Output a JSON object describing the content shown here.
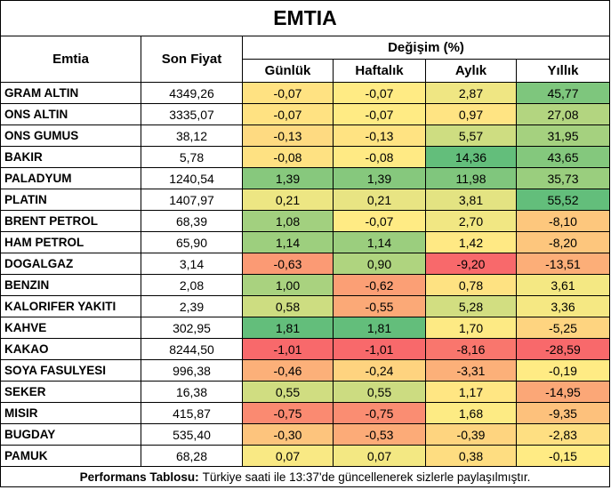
{
  "title": "EMTIA",
  "headers": {
    "commodity": "Emtia",
    "last_price": "Son Fiyat",
    "change_group": "Değişim (%)",
    "daily": "Günlük",
    "weekly": "Haftalık",
    "monthly": "Aylık",
    "yearly": "Yıllık"
  },
  "rows": [
    {
      "name": "GRAM ALTIN",
      "price": "4349,26",
      "daily": "-0,07",
      "weekly": "-0,07",
      "monthly": "2,87",
      "yearly": "45,77"
    },
    {
      "name": "ONS ALTIN",
      "price": "3335,07",
      "daily": "-0,07",
      "weekly": "-0,07",
      "monthly": "0,97",
      "yearly": "27,08"
    },
    {
      "name": "ONS GUMUS",
      "price": "38,12",
      "daily": "-0,13",
      "weekly": "-0,13",
      "monthly": "5,57",
      "yearly": "31,95"
    },
    {
      "name": "BAKIR",
      "price": "5,78",
      "daily": "-0,08",
      "weekly": "-0,08",
      "monthly": "14,36",
      "yearly": "43,65"
    },
    {
      "name": "PALADYUM",
      "price": "1240,54",
      "daily": "1,39",
      "weekly": "1,39",
      "monthly": "11,98",
      "yearly": "35,73"
    },
    {
      "name": "PLATIN",
      "price": "1407,97",
      "daily": "0,21",
      "weekly": "0,21",
      "monthly": "3,81",
      "yearly": "55,52"
    },
    {
      "name": "BRENT PETROL",
      "price": "68,39",
      "daily": "1,08",
      "weekly": "-0,07",
      "monthly": "2,70",
      "yearly": "-8,10"
    },
    {
      "name": "HAM PETROL",
      "price": "65,90",
      "daily": "1,14",
      "weekly": "1,14",
      "monthly": "1,42",
      "yearly": "-8,20"
    },
    {
      "name": "DOGALGAZ",
      "price": "3,14",
      "daily": "-0,63",
      "weekly": "0,90",
      "monthly": "-9,20",
      "yearly": "-13,51"
    },
    {
      "name": "BENZIN",
      "price": "2,08",
      "daily": "1,00",
      "weekly": "-0,62",
      "monthly": "0,78",
      "yearly": "3,61"
    },
    {
      "name": "KALORIFER YAKITI",
      "price": "2,39",
      "daily": "0,58",
      "weekly": "-0,55",
      "monthly": "5,28",
      "yearly": "3,36"
    },
    {
      "name": "KAHVE",
      "price": "302,95",
      "daily": "1,81",
      "weekly": "1,81",
      "monthly": "1,70",
      "yearly": "-5,25"
    },
    {
      "name": "KAKAO",
      "price": "8244,50",
      "daily": "-1,01",
      "weekly": "-1,01",
      "monthly": "-8,16",
      "yearly": "-28,59"
    },
    {
      "name": "SOYA FASULYESI",
      "price": "996,38",
      "daily": "-0,46",
      "weekly": "-0,24",
      "monthly": "-3,31",
      "yearly": "-0,19"
    },
    {
      "name": "SEKER",
      "price": "16,38",
      "daily": "0,55",
      "weekly": "0,55",
      "monthly": "1,17",
      "yearly": "-14,95"
    },
    {
      "name": "MISIR",
      "price": "415,87",
      "daily": "-0,75",
      "weekly": "-0,75",
      "monthly": "1,68",
      "yearly": "-9,35"
    },
    {
      "name": "BUGDAY",
      "price": "535,40",
      "daily": "-0,30",
      "weekly": "-0,53",
      "monthly": "-0,39",
      "yearly": "-2,83"
    },
    {
      "name": "PAMUK",
      "price": "68,28",
      "daily": "0,07",
      "weekly": "0,07",
      "monthly": "0,38",
      "yearly": "-0,15"
    }
  ],
  "footer": {
    "label": "Performans Tablosu:",
    "text": "Türkiye saati ile 13:37'de güncellenerek sizlerle paylaşılmıştır."
  },
  "colors": {
    "header_fill": "#ffffff",
    "grid_line": "#000000",
    "scale_low": "#f8696b",
    "scale_mid": "#ffeb84",
    "scale_high": "#63be7b"
  }
}
